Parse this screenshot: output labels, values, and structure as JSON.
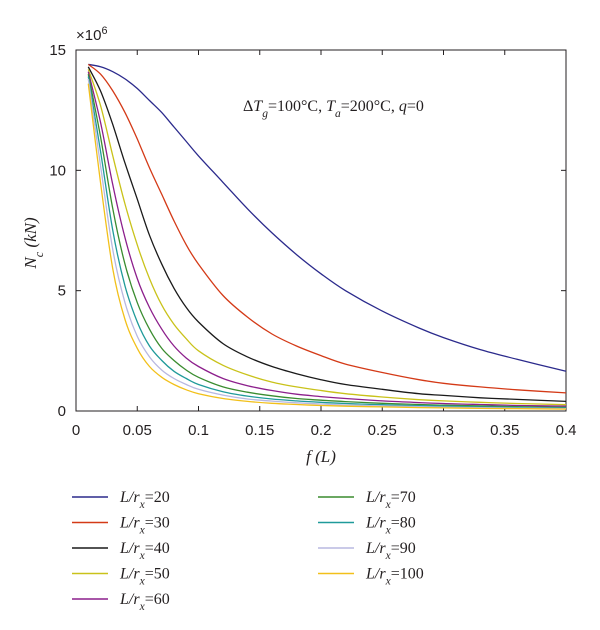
{
  "chart_data": {
    "type": "line",
    "xlabel": "f (L)",
    "ylabel": "N_c (kN)",
    "y_multiplier": "×10^6",
    "annotation": "ΔT_g=100°C, T_a=200°C, q=0",
    "xlim": [
      0,
      0.4
    ],
    "ylim": [
      0,
      15
    ],
    "x_ticks": [
      0,
      0.05,
      0.1,
      0.15,
      0.2,
      0.25,
      0.3,
      0.35,
      0.4
    ],
    "x_tick_labels": [
      "0",
      "0.05",
      "0.1",
      "0.15",
      "0.2",
      "0.25",
      "0.3",
      "0.35",
      "0.4"
    ],
    "y_ticks": [
      0,
      5,
      10,
      15
    ],
    "y_tick_labels": [
      "0",
      "5",
      "10",
      "15"
    ],
    "grid": false,
    "legend_placement": "bottom",
    "x": [
      0.01,
      0.02,
      0.03,
      0.04,
      0.05,
      0.06,
      0.07,
      0.08,
      0.09,
      0.1,
      0.12,
      0.14,
      0.16,
      0.18,
      0.2,
      0.22,
      0.25,
      0.28,
      0.3,
      0.33,
      0.36,
      0.4
    ],
    "series": [
      {
        "name": "L/r_x=20",
        "color": "#2b2a8c",
        "values": [
          14.4,
          14.3,
          14.1,
          13.8,
          13.4,
          12.9,
          12.4,
          11.8,
          11.2,
          10.6,
          9.5,
          8.4,
          7.4,
          6.5,
          5.7,
          5.0,
          4.15,
          3.45,
          3.05,
          2.55,
          2.15,
          1.65
        ]
      },
      {
        "name": "L/r_x=30",
        "color": "#d43a17",
        "values": [
          14.4,
          14.0,
          13.3,
          12.4,
          11.3,
          10.1,
          9.0,
          7.9,
          6.9,
          6.1,
          4.8,
          3.9,
          3.2,
          2.7,
          2.3,
          1.95,
          1.6,
          1.3,
          1.15,
          1.0,
          0.88,
          0.75
        ]
      },
      {
        "name": "L/r_x=40",
        "color": "#1a1a1a",
        "values": [
          14.3,
          13.3,
          11.9,
          10.3,
          8.8,
          7.3,
          6.1,
          5.1,
          4.3,
          3.7,
          2.8,
          2.25,
          1.85,
          1.55,
          1.3,
          1.1,
          0.9,
          0.72,
          0.65,
          0.55,
          0.48,
          0.4
        ]
      },
      {
        "name": "L/r_x=50",
        "color": "#c9c21a",
        "values": [
          14.2,
          12.7,
          10.6,
          8.6,
          6.9,
          5.5,
          4.4,
          3.6,
          3.0,
          2.5,
          1.9,
          1.5,
          1.2,
          1.0,
          0.85,
          0.72,
          0.58,
          0.47,
          0.42,
          0.36,
          0.31,
          0.26
        ]
      },
      {
        "name": "L/r_x=60",
        "color": "#8c1f8c",
        "values": [
          14.1,
          12.0,
          9.4,
          7.2,
          5.5,
          4.3,
          3.4,
          2.7,
          2.2,
          1.85,
          1.35,
          1.05,
          0.85,
          0.7,
          0.6,
          0.52,
          0.42,
          0.35,
          0.31,
          0.27,
          0.23,
          0.2
        ]
      },
      {
        "name": "L/r_x=70",
        "color": "#3a8c2f",
        "values": [
          14.0,
          11.4,
          8.4,
          6.1,
          4.5,
          3.4,
          2.6,
          2.1,
          1.7,
          1.4,
          1.0,
          0.78,
          0.63,
          0.52,
          0.45,
          0.39,
          0.32,
          0.27,
          0.24,
          0.21,
          0.18,
          0.15
        ]
      },
      {
        "name": "L/r_x=80",
        "color": "#1f9a9a",
        "values": [
          13.9,
          10.8,
          7.5,
          5.2,
          3.7,
          2.7,
          2.1,
          1.65,
          1.35,
          1.1,
          0.8,
          0.62,
          0.5,
          0.42,
          0.36,
          0.31,
          0.26,
          0.22,
          0.2,
          0.17,
          0.15,
          0.13
        ]
      },
      {
        "name": "L/r_x=90",
        "color": "#b8b8e0",
        "values": [
          13.8,
          10.2,
          6.7,
          4.5,
          3.1,
          2.25,
          1.7,
          1.35,
          1.1,
          0.9,
          0.66,
          0.5,
          0.41,
          0.34,
          0.29,
          0.25,
          0.21,
          0.18,
          0.16,
          0.14,
          0.12,
          0.1
        ]
      },
      {
        "name": "L/r_x=100",
        "color": "#f2c01a",
        "values": [
          13.6,
          9.5,
          5.9,
          3.8,
          2.6,
          1.85,
          1.4,
          1.1,
          0.88,
          0.72,
          0.52,
          0.4,
          0.32,
          0.27,
          0.23,
          0.2,
          0.17,
          0.14,
          0.13,
          0.11,
          0.1,
          0.08
        ]
      }
    ]
  }
}
